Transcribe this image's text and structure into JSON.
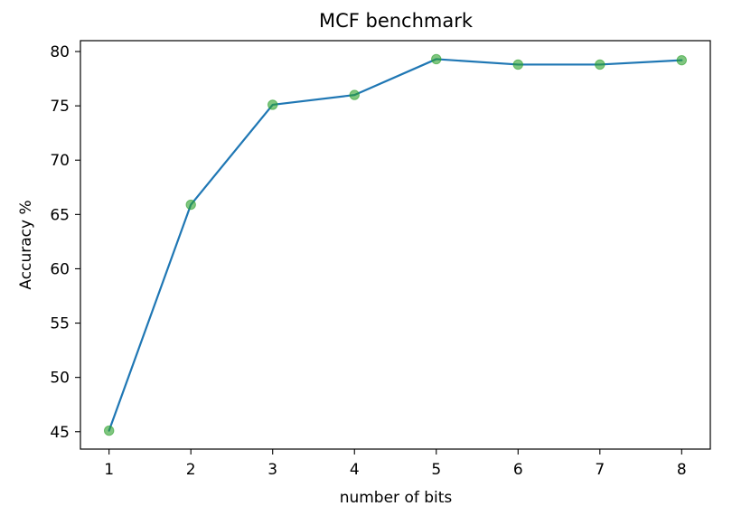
{
  "chart_data": {
    "type": "line",
    "title": "MCF benchmark",
    "xlabel": "number of bits",
    "ylabel": "Accuracy %",
    "x": [
      1,
      2,
      3,
      4,
      5,
      6,
      7,
      8
    ],
    "series": [
      {
        "values": [
          45.1,
          65.9,
          75.1,
          76.0,
          79.3,
          78.8,
          78.8,
          79.2
        ]
      }
    ],
    "xticks": [
      1,
      2,
      3,
      4,
      5,
      6,
      7,
      8
    ],
    "yticks": [
      45,
      50,
      55,
      60,
      65,
      70,
      75,
      80
    ],
    "xlim": [
      0.65,
      8.35
    ],
    "ylim": [
      43.4,
      81.0
    ],
    "grid": false,
    "colors": {
      "line": "#1f77b4",
      "marker": "#2ca02c"
    }
  }
}
